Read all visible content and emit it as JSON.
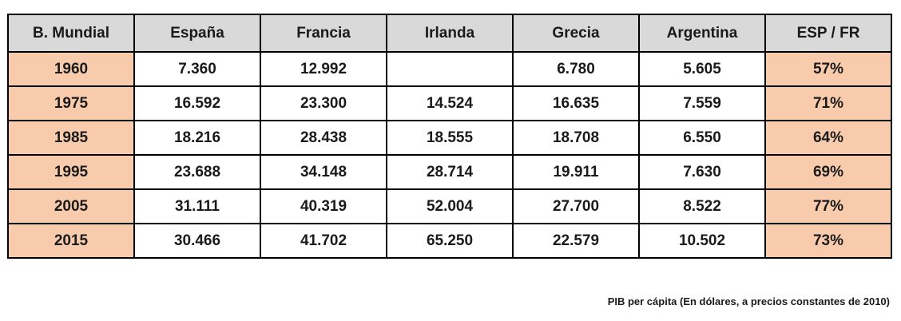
{
  "chart_data": {
    "type": "table",
    "columns": [
      "B. Mundial",
      "España",
      "Francia",
      "Irlanda",
      "Grecia",
      "Argentina",
      "ESP / FR"
    ],
    "rows": [
      [
        "1960",
        "7.360",
        "12.992",
        "",
        "6.780",
        "5.605",
        "57%"
      ],
      [
        "1975",
        "16.592",
        "23.300",
        "14.524",
        "16.635",
        "7.559",
        "71%"
      ],
      [
        "1985",
        "18.216",
        "28.438",
        "18.555",
        "18.708",
        "6.550",
        "64%"
      ],
      [
        "1995",
        "23.688",
        "34.148",
        "28.714",
        "19.911",
        "7.630",
        "69%"
      ],
      [
        "2005",
        "31.111",
        "40.319",
        "52.004",
        "27.700",
        "8.522",
        "77%"
      ],
      [
        "2015",
        "30.466",
        "41.702",
        "65.250",
        "22.579",
        "10.502",
        "73%"
      ]
    ],
    "caption": "PIB per cápita (En dólares, a precios constantes de 2010)"
  },
  "colors": {
    "header_fill": "#d9d9d9",
    "highlight_fill": "#f8cbad",
    "border": "#000000"
  }
}
